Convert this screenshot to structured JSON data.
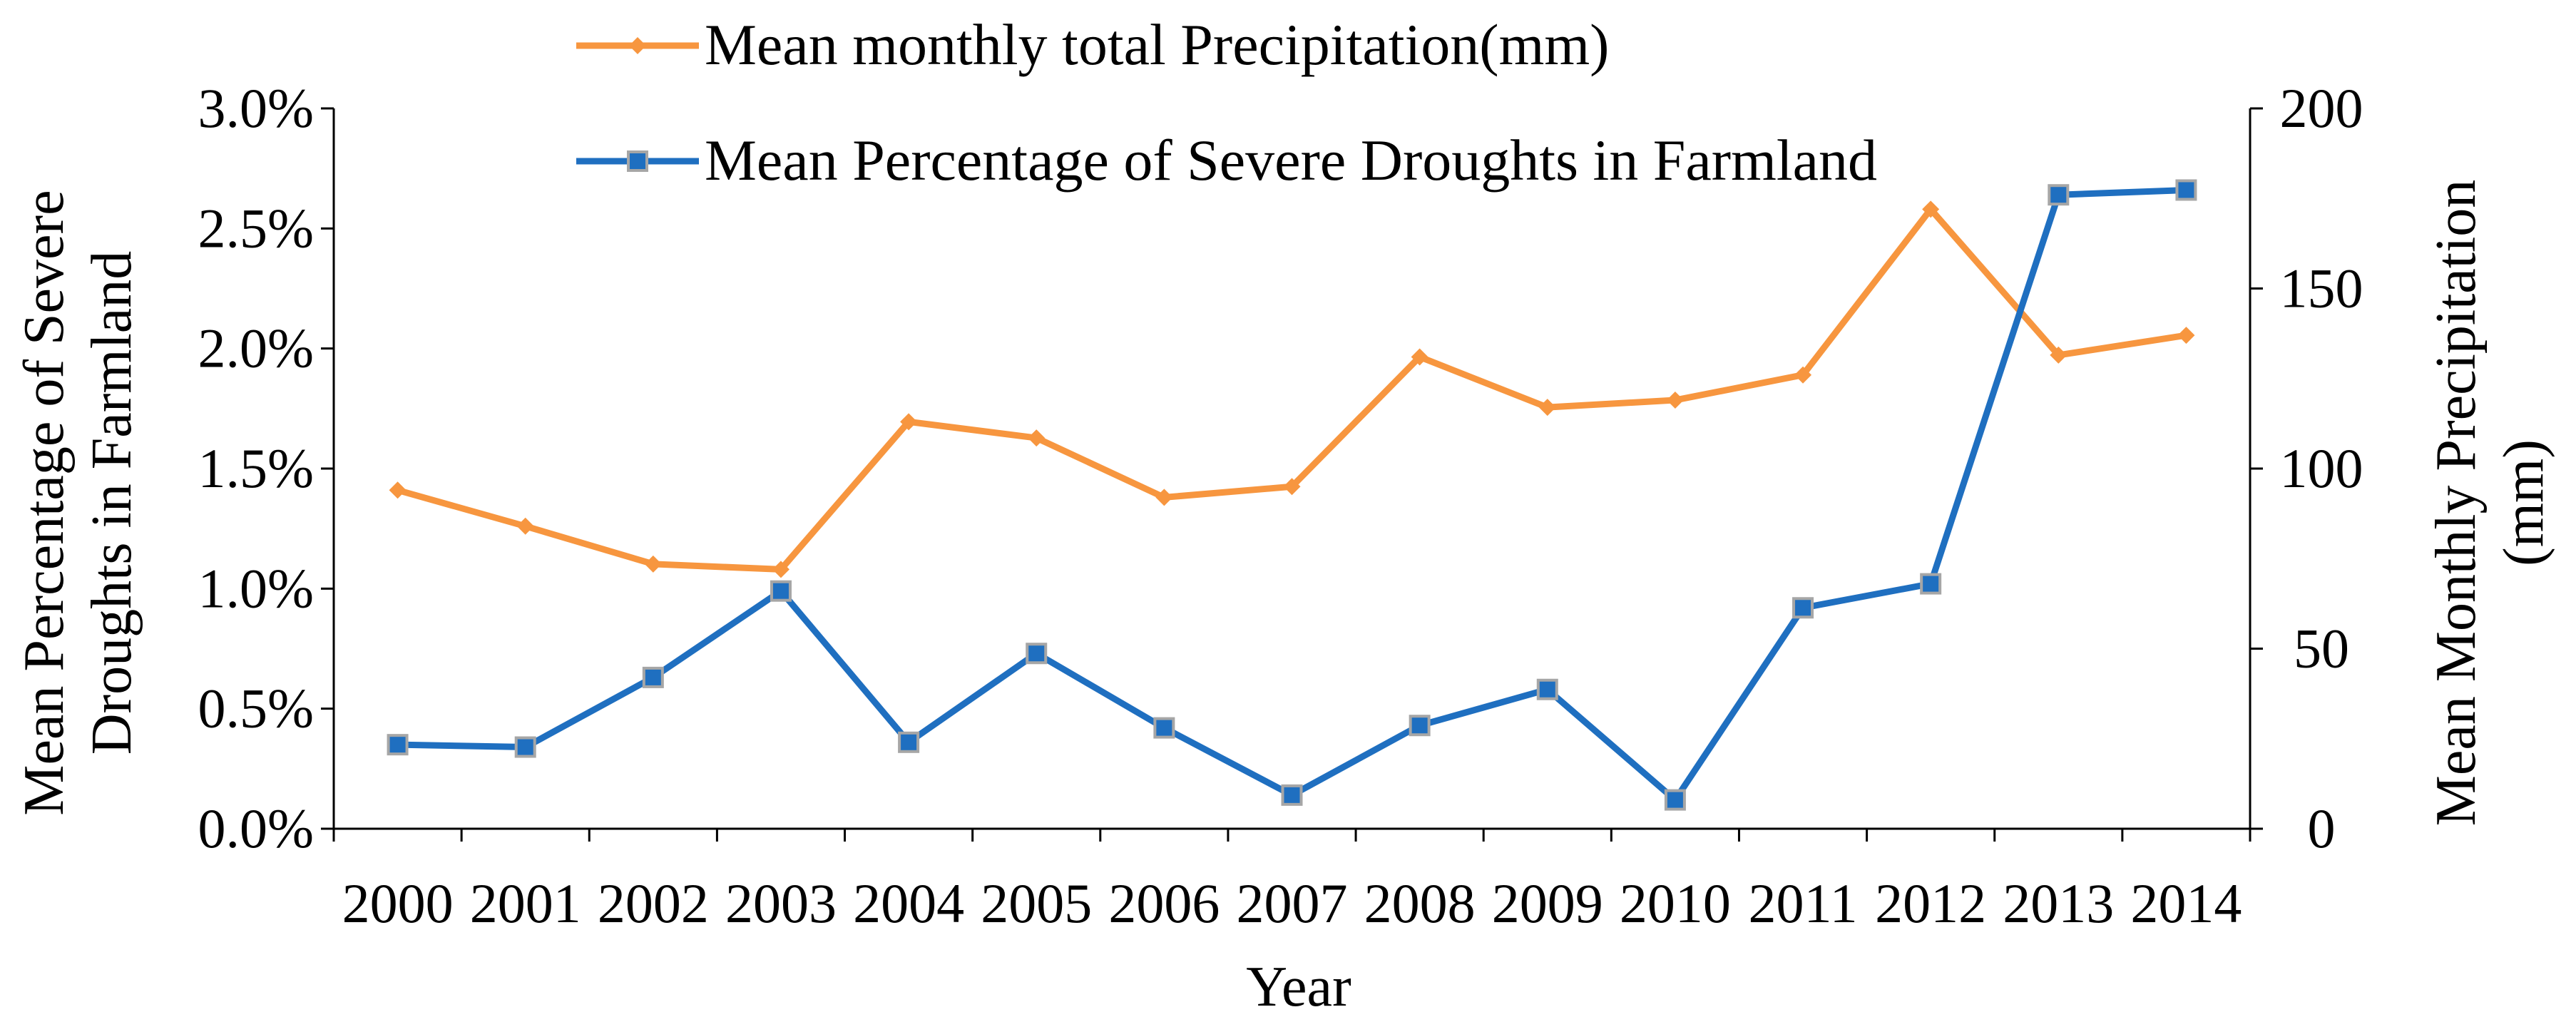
{
  "chart_data": {
    "type": "line",
    "x": [
      "2000",
      "2001",
      "2002",
      "2003",
      "2004",
      "2005",
      "2006",
      "2007",
      "2008",
      "2009",
      "2010",
      "2011",
      "2012",
      "2013",
      "2014"
    ],
    "xlabel": "Year",
    "ylabel_left": "Mean Percentage of Severe Droughts in Farmland",
    "ylabel_left_lines": [
      "Mean Percentage of Severe",
      "Droughts in Farmland"
    ],
    "ylabel_right": "Mean Monthly Precipitation (mm)",
    "ylabel_right_lines": [
      "Mean Monthly Precipitation",
      "(mm)"
    ],
    "y_left_range": [
      0,
      3.0
    ],
    "y_left_ticks": [
      "0.0%",
      "0.5%",
      "1.0%",
      "1.5%",
      "2.0%",
      "2.5%",
      "3.0%"
    ],
    "y_right_range": [
      0,
      200
    ],
    "y_right_ticks": [
      "0",
      "50",
      "100",
      "150",
      "200"
    ],
    "legend_position": "top-center",
    "series": [
      {
        "name": "Mean monthly total Precipitation(mm)",
        "axis": "right",
        "marker": "diamond",
        "color": "#F7963F",
        "values": [
          94,
          84,
          73.5,
          72,
          113,
          108.5,
          92,
          95,
          131,
          117,
          119,
          126,
          172,
          131.5,
          137
        ]
      },
      {
        "name": "Mean Percentage of Severe Droughts in Farmland",
        "axis": "left",
        "marker": "square",
        "color": "#1F6FC0",
        "marker_edge": "#A6A6A6",
        "values": [
          0.35,
          0.34,
          0.63,
          0.99,
          0.36,
          0.73,
          0.42,
          0.14,
          0.43,
          0.58,
          0.12,
          0.92,
          1.02,
          2.64,
          2.66
        ]
      }
    ]
  }
}
